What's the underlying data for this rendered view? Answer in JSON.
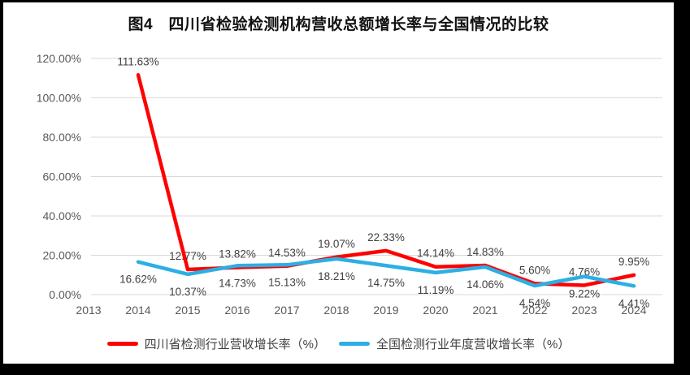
{
  "title": "图4　四川省检验检测机构营收总额增长率与全国情况的比较",
  "chart_data": {
    "type": "line",
    "categories": [
      "2013",
      "2014",
      "2015",
      "2016",
      "2017",
      "2018",
      "2019",
      "2020",
      "2021",
      "2022",
      "2023",
      "2024"
    ],
    "series": [
      {
        "name": "四川省检测行业营收增长率（%）",
        "color": "#FF0000",
        "x_start_index": 1,
        "label_position": "above",
        "values": [
          111.63,
          12.77,
          13.82,
          14.53,
          19.07,
          22.33,
          14.14,
          14.83,
          5.6,
          4.76,
          9.95
        ]
      },
      {
        "name": "全国检测行业年度营收增长率（%）",
        "color": "#2BAFE4",
        "x_start_index": 1,
        "label_position": "below",
        "values": [
          16.62,
          10.37,
          14.73,
          15.13,
          18.21,
          14.75,
          11.19,
          14.06,
          4.54,
          9.22,
          4.41
        ]
      }
    ],
    "y_ticks": [
      "0.00%",
      "20.00%",
      "40.00%",
      "60.00%",
      "80.00%",
      "100.00%",
      "120.00%"
    ],
    "ylim": [
      0,
      120
    ],
    "grid": true,
    "gridline_color": "#d9d9d9",
    "legend_position": "bottom"
  }
}
